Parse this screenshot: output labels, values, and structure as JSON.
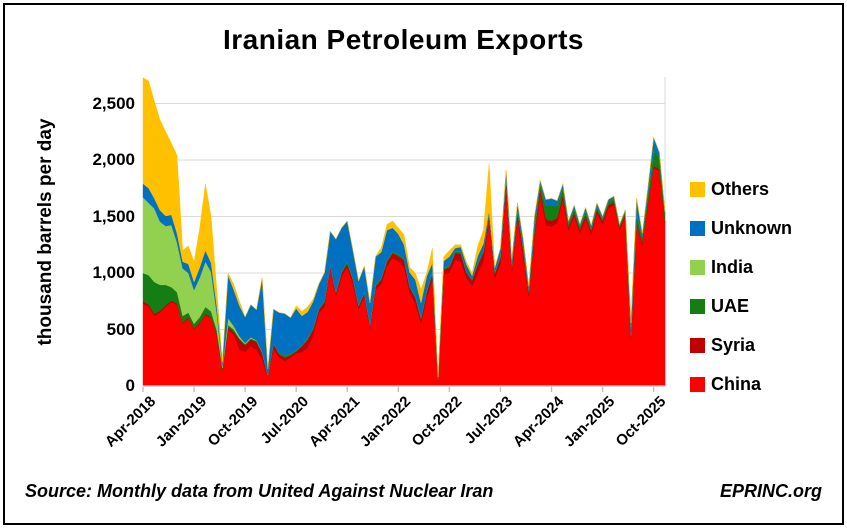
{
  "footer": {
    "source": "Source: Monthly data from United Against Nuclear Iran",
    "brand": "EPRINC.org"
  },
  "chart_data": {
    "type": "area",
    "stacked": true,
    "title": "Iranian Petroleum Exports",
    "xlabel": "",
    "ylabel": "thousand barrels per day",
    "ylim": [
      0,
      2735
    ],
    "grid": "horizontal",
    "grid_color": "#D9D9D9",
    "axis_color": "#BFBFBF",
    "legend_position": "right",
    "legend_order": [
      "Others",
      "Unknown",
      "India",
      "UAE",
      "Syria",
      "China"
    ],
    "stack_order_bottom_to_top": [
      "China",
      "Syria",
      "UAE",
      "India",
      "Unknown",
      "Others"
    ],
    "yticks": [
      {
        "value": 0,
        "label": "0"
      },
      {
        "value": 500,
        "label": "500"
      },
      {
        "value": 1000,
        "label": "1,000"
      },
      {
        "value": 1500,
        "label": "1,500"
      },
      {
        "value": 2000,
        "label": "2,000"
      },
      {
        "value": 2500,
        "label": "2,500"
      }
    ],
    "xticks": [
      {
        "month_index": 0,
        "label": "Apr-2018"
      },
      {
        "month_index": 9,
        "label": "Jan-2019"
      },
      {
        "month_index": 18,
        "label": "Oct-2019"
      },
      {
        "month_index": 27,
        "label": "Jul-2020"
      },
      {
        "month_index": 36,
        "label": "Apr-2021"
      },
      {
        "month_index": 45,
        "label": "Jan-2022"
      },
      {
        "month_index": 54,
        "label": "Oct-2022"
      },
      {
        "month_index": 63,
        "label": "Jul-2023"
      },
      {
        "month_index": 72,
        "label": "Apr-2024"
      },
      {
        "month_index": 81,
        "label": "Jan-2025"
      },
      {
        "month_index": 90,
        "label": "Oct-2025"
      }
    ],
    "x_months": [
      "Apr-2018",
      "May-2018",
      "Jun-2018",
      "Jul-2018",
      "Aug-2018",
      "Sep-2018",
      "Oct-2018",
      "Nov-2018",
      "Dec-2018",
      "Jan-2019",
      "Feb-2019",
      "Mar-2019",
      "Apr-2019",
      "May-2019",
      "Jun-2019",
      "Jul-2019",
      "Aug-2019",
      "Sep-2019",
      "Oct-2019",
      "Nov-2019",
      "Dec-2019",
      "Jan-2020",
      "Feb-2020",
      "Mar-2020",
      "Apr-2020",
      "May-2020",
      "Jun-2020",
      "Jul-2020",
      "Aug-2020",
      "Sep-2020",
      "Oct-2020",
      "Nov-2020",
      "Dec-2020",
      "Jan-2021",
      "Feb-2021",
      "Mar-2021",
      "Apr-2021",
      "May-2021",
      "Jun-2021",
      "Jul-2021",
      "Aug-2021",
      "Sep-2021",
      "Oct-2021",
      "Nov-2021",
      "Dec-2021",
      "Jan-2022",
      "Feb-2022",
      "Mar-2022",
      "Apr-2022",
      "May-2022",
      "Jun-2022",
      "Jul-2022",
      "Aug-2022",
      "Sep-2022",
      "Oct-2022",
      "Nov-2022",
      "Dec-2022",
      "Jan-2023",
      "Feb-2023",
      "Mar-2023",
      "Apr-2023",
      "May-2023",
      "Jun-2023",
      "Jul-2023",
      "Aug-2023",
      "Sep-2023",
      "Oct-2023",
      "Nov-2023",
      "Dec-2023",
      "Jan-2024",
      "Feb-2024",
      "Mar-2024",
      "Apr-2024",
      "May-2024",
      "Jun-2024",
      "Jul-2024",
      "Aug-2024",
      "Sep-2024",
      "Oct-2024",
      "Nov-2024",
      "Dec-2024",
      "Jan-2025",
      "Feb-2025",
      "Mar-2025",
      "Apr-2025",
      "May-2025",
      "Jun-2025",
      "Jul-2025",
      "Aug-2025",
      "Sep-2025",
      "Oct-2025",
      "Nov-2025",
      "Dec-2025"
    ],
    "series": [
      {
        "name": "Others",
        "color": "#FFC000",
        "values": [
          940,
          950,
          860,
          800,
          745,
          635,
          690,
          100,
          160,
          180,
          350,
          590,
          410,
          150,
          10,
          20,
          50,
          40,
          0,
          0,
          0,
          0,
          0,
          0,
          0,
          0,
          0,
          25,
          40,
          45,
          20,
          10,
          0,
          0,
          0,
          0,
          0,
          0,
          0,
          0,
          0,
          5,
          40,
          50,
          60,
          55,
          90,
          45,
          60,
          120,
          30,
          130,
          0,
          40,
          55,
          30,
          20,
          25,
          25,
          90,
          120,
          420,
          0,
          0,
          0,
          0,
          0,
          0,
          0,
          0,
          0,
          0,
          0,
          0,
          0,
          0,
          0,
          0,
          0,
          0,
          0,
          0,
          0,
          0,
          0,
          0,
          0,
          0,
          0,
          0,
          0,
          0,
          0
        ]
      },
      {
        "name": "Unknown",
        "color": "#0070C0",
        "values": [
          120,
          130,
          90,
          100,
          90,
          90,
          80,
          60,
          80,
          70,
          90,
          100,
          80,
          60,
          30,
          380,
          320,
          270,
          230,
          290,
          270,
          650,
          55,
          300,
          360,
          370,
          320,
          370,
          260,
          235,
          240,
          215,
          250,
          300,
          470,
          385,
          360,
          245,
          215,
          230,
          195,
          250,
          230,
          265,
          210,
          180,
          120,
          120,
          145,
          130,
          130,
          80,
          20,
          60,
          80,
          30,
          40,
          60,
          30,
          60,
          60,
          30,
          40,
          70,
          70,
          60,
          60,
          60,
          40,
          90,
          25,
          50,
          60,
          40,
          40,
          20,
          30,
          20,
          30,
          30,
          30,
          20,
          20,
          20,
          10,
          10,
          110,
          130,
          30,
          60,
          120,
          40,
          10
        ]
      },
      {
        "name": "India",
        "color": "#92D050",
        "values": [
          670,
          640,
          650,
          560,
          520,
          550,
          440,
          420,
          350,
          300,
          350,
          400,
          350,
          150,
          20,
          60,
          30,
          20,
          10,
          10,
          5,
          5,
          0,
          0,
          0,
          0,
          0,
          0,
          0,
          0,
          0,
          0,
          0,
          0,
          0,
          0,
          0,
          0,
          0,
          0,
          0,
          0,
          0,
          0,
          0,
          0,
          0,
          0,
          0,
          0,
          0,
          0,
          0,
          0,
          0,
          0,
          0,
          0,
          0,
          0,
          0,
          0,
          0,
          0,
          0,
          0,
          0,
          0,
          0,
          0,
          0,
          0,
          0,
          0,
          0,
          0,
          0,
          0,
          0,
          0,
          0,
          0,
          0,
          0,
          0,
          0,
          0,
          0,
          0,
          0,
          0,
          0,
          0
        ]
      },
      {
        "name": "UAE",
        "color": "#147D14",
        "values": [
          250,
          260,
          280,
          230,
          180,
          120,
          100,
          60,
          40,
          40,
          50,
          60,
          50,
          30,
          10,
          20,
          20,
          10,
          10,
          10,
          10,
          10,
          5,
          10,
          10,
          20,
          15,
          10,
          10,
          10,
          10,
          10,
          15,
          10,
          10,
          15,
          20,
          15,
          10,
          10,
          10,
          15,
          15,
          15,
          15,
          15,
          15,
          15,
          15,
          15,
          15,
          20,
          5,
          15,
          15,
          15,
          20,
          15,
          15,
          20,
          20,
          10,
          15,
          20,
          15,
          20,
          30,
          40,
          20,
          60,
          50,
          120,
          140,
          110,
          60,
          30,
          40,
          30,
          40,
          20,
          30,
          20,
          30,
          30,
          20,
          30,
          10,
          80,
          50,
          80,
          130,
          110,
          80
        ]
      },
      {
        "name": "Syria",
        "color": "#C00000",
        "values": [
          20,
          20,
          20,
          15,
          15,
          15,
          10,
          10,
          10,
          10,
          10,
          10,
          10,
          15,
          10,
          20,
          30,
          90,
          60,
          60,
          70,
          60,
          10,
          40,
          30,
          30,
          20,
          15,
          50,
          75,
          50,
          30,
          40,
          20,
          30,
          30,
          30,
          40,
          30,
          30,
          30,
          30,
          40,
          40,
          45,
          50,
          60,
          50,
          50,
          40,
          50,
          50,
          5,
          40,
          50,
          60,
          70,
          50,
          50,
          70,
          80,
          30,
          40,
          50,
          60,
          40,
          50,
          50,
          30,
          50,
          40,
          60,
          50,
          50,
          40,
          30,
          30,
          30,
          30,
          30,
          30,
          30,
          30,
          30,
          20,
          20,
          10,
          20,
          20,
          20,
          20,
          20,
          10
        ]
      },
      {
        "name": "China",
        "color": "#FF0000",
        "values": [
          730,
          700,
          620,
          650,
          700,
          740,
          720,
          550,
          600,
          500,
          550,
          630,
          600,
          450,
          140,
          500,
          450,
          320,
          300,
          350,
          320,
          230,
          80,
          330,
          250,
          220,
          250,
          290,
          300,
          335,
          450,
          645,
          700,
          1040,
          790,
          970,
          1050,
          900,
          675,
          790,
          500,
          850,
          900,
          1060,
          1130,
          1100,
          1055,
          820,
          730,
          550,
          775,
          940,
          50,
          990,
          1000,
          1115,
          1100,
          950,
          880,
          1000,
          1100,
          1480,
          950,
          1080,
          1765,
          1000,
          1480,
          1150,
          790,
          1300,
          1705,
          1420,
          1410,
          1440,
          1650,
          1380,
          1500,
          1350,
          1480,
          1340,
          1530,
          1430,
          1570,
          1600,
          1380,
          1500,
          430,
          1430,
          1250,
          1600,
          1930,
          1900,
          1440
        ]
      }
    ]
  }
}
